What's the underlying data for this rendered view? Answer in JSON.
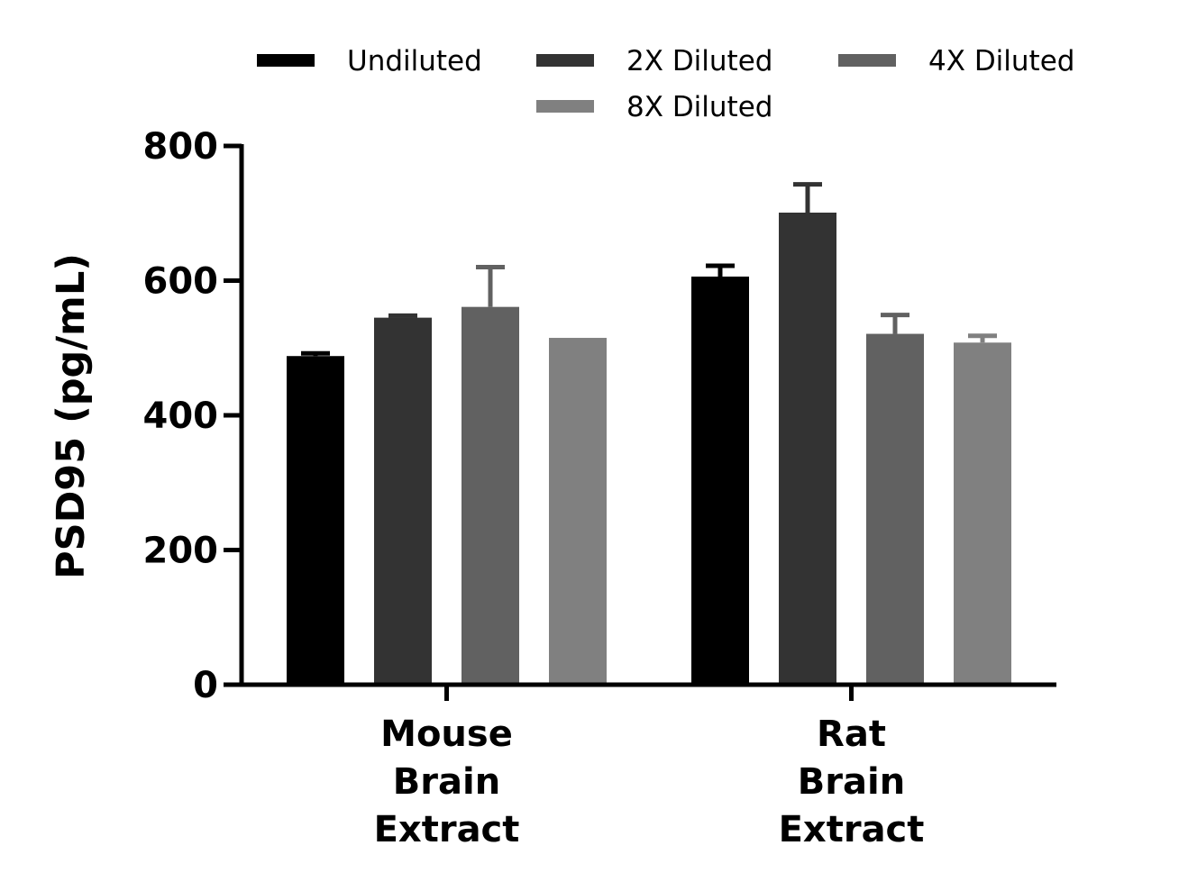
{
  "chart_data": {
    "type": "bar",
    "title": "",
    "xlabel": "",
    "ylabel": "PSD95 (pg/mL)",
    "ylim": [
      0,
      800
    ],
    "yticks": [
      "0",
      "200",
      "400",
      "600",
      "800"
    ],
    "ytick_values": [
      0,
      200,
      400,
      600,
      800
    ],
    "grid": false,
    "legend_position": "top",
    "categories": [
      [
        "Mouse",
        "Brain",
        "Extract"
      ],
      [
        "Rat",
        "Brain",
        "Extract"
      ]
    ],
    "series": [
      {
        "name": "Undiluted",
        "color": "#000000",
        "values": [
          488,
          606
        ],
        "errors": [
          4,
          16
        ]
      },
      {
        "name": "2X Diluted",
        "color": "#333333",
        "values": [
          545,
          701
        ],
        "errors": [
          3,
          42
        ]
      },
      {
        "name": "4X Diluted",
        "color": "#616161",
        "values": [
          561,
          521
        ],
        "errors": [
          59,
          28
        ]
      },
      {
        "name": "8X Diluted",
        "color": "#808080",
        "values": [
          515,
          508
        ],
        "errors": [
          0,
          10
        ]
      }
    ]
  }
}
